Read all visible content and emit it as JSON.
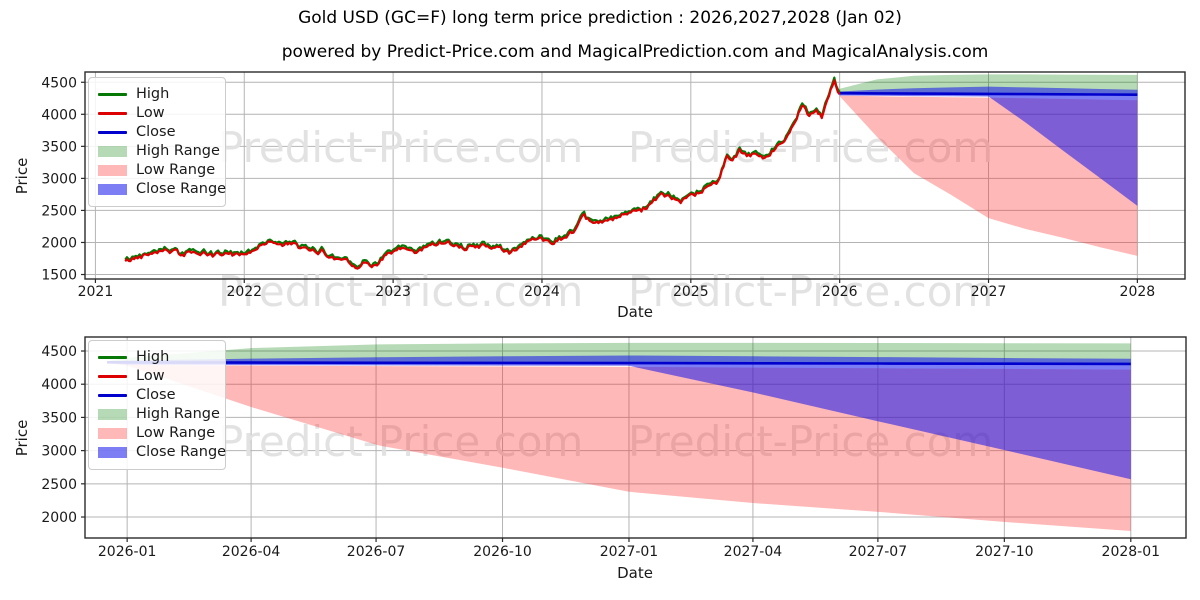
{
  "figure": {
    "title": "Gold USD (GC=F) long term price prediction : 2026,2027,2028 (Jan 02)",
    "subtitle": "powered by Predict-Price.com and MagicalPrediction.com and MagicalAnalysis.com",
    "watermark_text": "Predict-Price.com"
  },
  "palette": {
    "high_line": "#067806",
    "low_line": "#dc0000",
    "close_line": "#0000cd",
    "high_fill": "rgba(0,128,0,0.29)",
    "low_fill": "rgba(255,40,40,0.33)",
    "close_fill": "rgba(20,20,235,0.55)",
    "grid": "#b4b4b4",
    "frame": "#2a2a2a",
    "watermark": "#e2e2e2",
    "tick_text": "#1a1a1a"
  },
  "legend": {
    "position": "upper left",
    "items": [
      {
        "label": "High",
        "swatch": "line",
        "color": "high_line"
      },
      {
        "label": "Low",
        "swatch": "line",
        "color": "low_line"
      },
      {
        "label": "Close",
        "swatch": "line",
        "color": "close_line"
      },
      {
        "label": "High Range",
        "swatch": "patch",
        "color": "high_fill"
      },
      {
        "label": "Low Range",
        "swatch": "patch",
        "color": "low_fill"
      },
      {
        "label": "Close Range",
        "swatch": "patch",
        "color": "close_fill"
      }
    ]
  },
  "prediction": {
    "x": [
      2025.96,
      2026.0,
      2026.25,
      2026.5,
      2026.75,
      2027.0,
      2027.25,
      2027.5,
      2027.75,
      2028.0
    ],
    "close": [
      4330,
      4329,
      4326,
      4323,
      4321,
      4318,
      4315,
      4312,
      4309,
      4306
    ],
    "high_top": [
      4345,
      4400,
      4545,
      4600,
      4615,
      4622,
      4622,
      4620,
      4617,
      4614
    ],
    "close_top": [
      4338,
      4356,
      4386,
      4406,
      4420,
      4432,
      4420,
      4408,
      4394,
      4382
    ],
    "close_bottom": [
      4322,
      4294,
      4288,
      4284,
      4281,
      4278,
      3870,
      3435,
      3005,
      2570
    ],
    "low_top": [
      4322,
      4292,
      4281,
      4273,
      4266,
      4260,
      4250,
      4240,
      4230,
      4220
    ],
    "low_bottom": [
      4318,
      4282,
      3650,
      3080,
      2740,
      2380,
      2210,
      2075,
      1925,
      1790
    ]
  },
  "chart_data": [
    {
      "type": "line",
      "title": "",
      "xlabel": "Date",
      "ylabel": "Price",
      "grid": true,
      "xlim": [
        2020.93,
        2028.32
      ],
      "ylim": [
        1430,
        4660
      ],
      "xticks": [
        {
          "v": 2021,
          "label": "2021"
        },
        {
          "v": 2022,
          "label": "2022"
        },
        {
          "v": 2023,
          "label": "2023"
        },
        {
          "v": 2024,
          "label": "2024"
        },
        {
          "v": 2025,
          "label": "2025"
        },
        {
          "v": 2026,
          "label": "2026"
        },
        {
          "v": 2027,
          "label": "2027"
        },
        {
          "v": 2028,
          "label": "2028"
        }
      ],
      "yticks": [
        1500,
        2000,
        2500,
        3000,
        3500,
        4000,
        4500
      ],
      "history_series_names": [
        "High",
        "Low"
      ],
      "history_anchors": [
        [
          2021.2,
          1700
        ],
        [
          2021.3,
          1780
        ],
        [
          2021.38,
          1850
        ],
        [
          2021.45,
          1900
        ],
        [
          2021.52,
          1860
        ],
        [
          2021.58,
          1800
        ],
        [
          2021.65,
          1865
        ],
        [
          2021.72,
          1815
        ],
        [
          2021.8,
          1790
        ],
        [
          2021.88,
          1845
        ],
        [
          2021.95,
          1800
        ],
        [
          2022.0,
          1830
        ],
        [
          2022.08,
          1900
        ],
        [
          2022.18,
          2045
        ],
        [
          2022.24,
          1945
        ],
        [
          2022.3,
          1985
        ],
        [
          2022.38,
          1910
        ],
        [
          2022.45,
          1855
        ],
        [
          2022.52,
          1865
        ],
        [
          2022.6,
          1750
        ],
        [
          2022.68,
          1745
        ],
        [
          2022.75,
          1640
        ],
        [
          2022.82,
          1670
        ],
        [
          2022.88,
          1650
        ],
        [
          2022.95,
          1790
        ],
        [
          2023.02,
          1860
        ],
        [
          2023.08,
          1920
        ],
        [
          2023.15,
          1835
        ],
        [
          2023.22,
          1920
        ],
        [
          2023.28,
          1990
        ],
        [
          2023.35,
          2015
        ],
        [
          2023.42,
          1960
        ],
        [
          2023.48,
          1925
        ],
        [
          2023.55,
          1915
        ],
        [
          2023.62,
          1955
        ],
        [
          2023.7,
          1905
        ],
        [
          2023.78,
          1830
        ],
        [
          2023.85,
          1940
        ],
        [
          2023.92,
          2035
        ],
        [
          2024.0,
          2045
        ],
        [
          2024.08,
          2025
        ],
        [
          2024.15,
          2080
        ],
        [
          2024.22,
          2210
        ],
        [
          2024.28,
          2390
        ],
        [
          2024.33,
          2300
        ],
        [
          2024.4,
          2330
        ],
        [
          2024.47,
          2350
        ],
        [
          2024.53,
          2400
        ],
        [
          2024.6,
          2450
        ],
        [
          2024.67,
          2500
        ],
        [
          2024.73,
          2620
        ],
        [
          2024.8,
          2760
        ],
        [
          2024.86,
          2700
        ],
        [
          2024.92,
          2600
        ],
        [
          2024.98,
          2670
        ],
        [
          2025.05,
          2760
        ],
        [
          2025.12,
          2880
        ],
        [
          2025.18,
          2960
        ],
        [
          2025.24,
          3350
        ],
        [
          2025.28,
          3280
        ],
        [
          2025.33,
          3420
        ],
        [
          2025.38,
          3330
        ],
        [
          2025.43,
          3380
        ],
        [
          2025.48,
          3310
        ],
        [
          2025.53,
          3370
        ],
        [
          2025.6,
          3550
        ],
        [
          2025.67,
          3750
        ],
        [
          2025.72,
          3990
        ],
        [
          2025.75,
          4190
        ],
        [
          2025.79,
          3990
        ],
        [
          2025.84,
          4110
        ],
        [
          2025.88,
          3970
        ],
        [
          2025.93,
          4260
        ],
        [
          2025.96,
          4530
        ],
        [
          2026.0,
          4320
        ]
      ]
    },
    {
      "type": "area",
      "title": "",
      "xlabel": "Date",
      "ylabel": "Price",
      "grid": true,
      "xlim": [
        2025.916,
        2028.11
      ],
      "ylim": [
        1684,
        4711
      ],
      "xticks": [
        {
          "v": 2026.0,
          "label": "2026-01"
        },
        {
          "v": 2026.247,
          "label": "2026-04"
        },
        {
          "v": 2026.496,
          "label": "2026-07"
        },
        {
          "v": 2026.748,
          "label": "2026-10"
        },
        {
          "v": 2027.0,
          "label": "2027-01"
        },
        {
          "v": 2027.247,
          "label": "2027-04"
        },
        {
          "v": 2027.496,
          "label": "2027-07"
        },
        {
          "v": 2027.748,
          "label": "2027-10"
        },
        {
          "v": 2028.0,
          "label": "2028-01"
        }
      ],
      "yticks": [
        2000,
        2500,
        3000,
        3500,
        4000,
        4500
      ]
    }
  ]
}
